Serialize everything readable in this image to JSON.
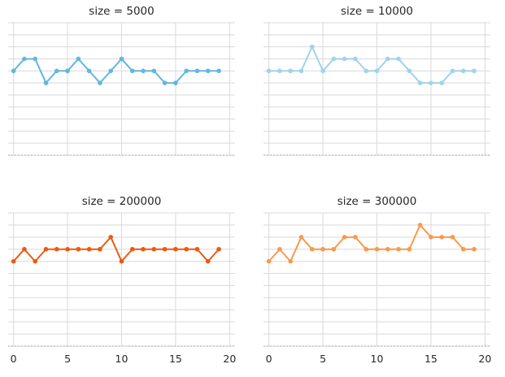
{
  "chart_data": [
    {
      "type": "line",
      "title": "size = 5000",
      "color": "#64b6de",
      "x": [
        0,
        1,
        2,
        3,
        4,
        5,
        6,
        7,
        8,
        9,
        10,
        11,
        12,
        13,
        14,
        15,
        16,
        17,
        18,
        19
      ],
      "values": [
        7,
        8,
        8,
        6,
        7,
        7,
        8,
        7,
        6,
        7,
        8,
        7,
        7,
        7,
        6,
        6,
        7,
        7,
        7,
        7
      ],
      "xlim": [
        -0.5,
        20.5
      ],
      "ylim": [
        0,
        11
      ],
      "xticks": [
        0,
        5,
        10,
        15,
        20
      ],
      "grid": true
    },
    {
      "type": "line",
      "title": "size = 10000",
      "color": "#9fd3ea",
      "x": [
        0,
        1,
        2,
        3,
        4,
        5,
        6,
        7,
        8,
        9,
        10,
        11,
        12,
        13,
        14,
        15,
        16,
        17,
        18,
        19
      ],
      "values": [
        7,
        7,
        7,
        7,
        9,
        7,
        8,
        8,
        8,
        7,
        7,
        8,
        8,
        7,
        6,
        6,
        6,
        7,
        7,
        7
      ],
      "xlim": [
        -0.5,
        20.5
      ],
      "ylim": [
        0,
        11
      ],
      "xticks": [
        0,
        5,
        10,
        15,
        20
      ],
      "grid": true
    },
    {
      "type": "line",
      "title": "size = 200000",
      "color": "#eb5a10",
      "x": [
        0,
        1,
        2,
        3,
        4,
        5,
        6,
        7,
        8,
        9,
        10,
        11,
        12,
        13,
        14,
        15,
        16,
        17,
        18,
        19
      ],
      "values": [
        7,
        8,
        7,
        8,
        8,
        8,
        8,
        8,
        8,
        9,
        7,
        8,
        8,
        8,
        8,
        8,
        8,
        8,
        7,
        8
      ],
      "xlim": [
        -0.5,
        20.5
      ],
      "ylim": [
        0,
        11
      ],
      "xticks": [
        0,
        5,
        10,
        15,
        20
      ],
      "grid": true
    },
    {
      "type": "line",
      "title": "size = 300000",
      "color": "#f89a4c",
      "x": [
        0,
        1,
        2,
        3,
        4,
        5,
        6,
        7,
        8,
        9,
        10,
        11,
        12,
        13,
        14,
        15,
        16,
        17,
        18,
        19
      ],
      "values": [
        7,
        8,
        7,
        9,
        8,
        8,
        8,
        9,
        9,
        8,
        8,
        8,
        8,
        8,
        10,
        9,
        9,
        9,
        8,
        8
      ],
      "xlim": [
        -0.5,
        20.5
      ],
      "ylim": [
        0,
        11
      ],
      "xticks": [
        0,
        5,
        10,
        15,
        20
      ],
      "grid": true
    }
  ]
}
